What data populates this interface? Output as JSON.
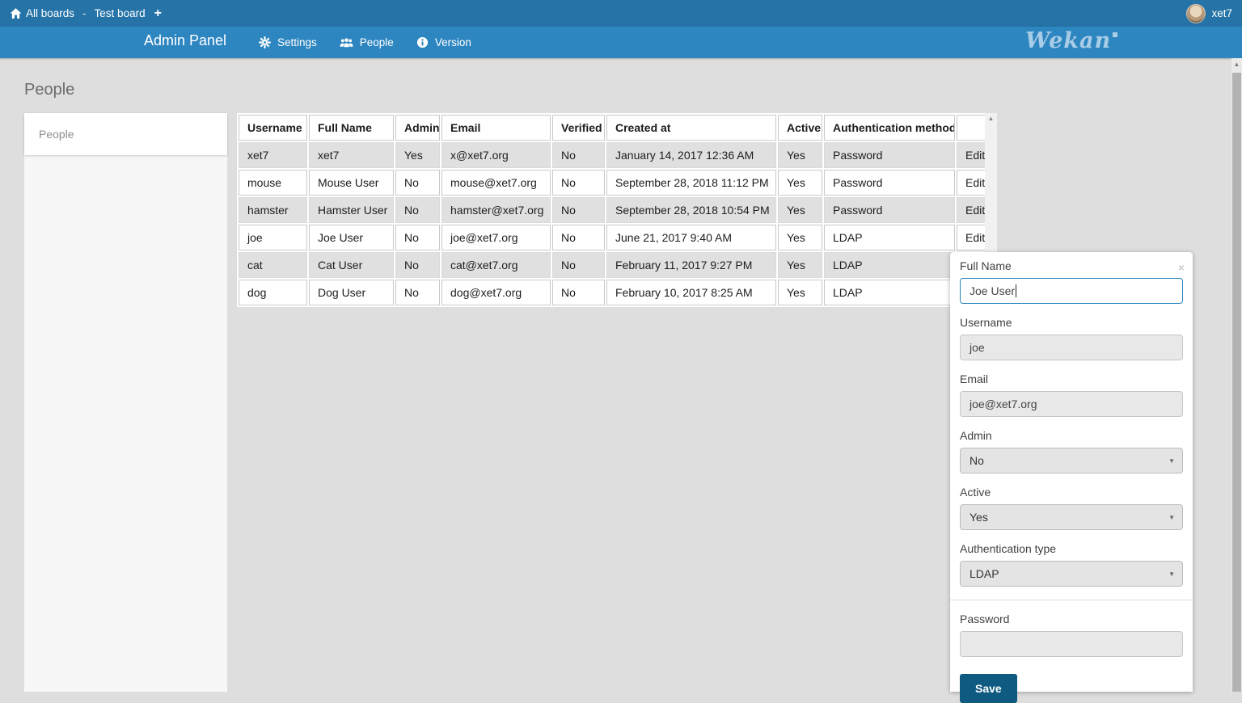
{
  "topbar": {
    "all_boards": "All boards",
    "separator": "-",
    "board_name": "Test board",
    "user_name": "xet7"
  },
  "header": {
    "title": "Admin Panel",
    "menu": [
      {
        "label": "Settings",
        "icon": "gear-icon"
      },
      {
        "label": "People",
        "icon": "people-icon"
      },
      {
        "label": "Version",
        "icon": "info-icon"
      }
    ],
    "logo_text": "Wekan"
  },
  "page": {
    "title": "People"
  },
  "sidebar": {
    "items": [
      {
        "label": "People",
        "active": true
      }
    ]
  },
  "table": {
    "headers": [
      "Username",
      "Full Name",
      "Admin",
      "Email",
      "Verified",
      "Created at",
      "Active",
      "Authentication method",
      ""
    ],
    "edit_label": "Edit",
    "rows": [
      {
        "cells": [
          "xet7",
          "xet7",
          "Yes",
          "x@xet7.org",
          "No",
          "January 14, 2017 12:36 AM",
          "Yes",
          "Password"
        ]
      },
      {
        "cells": [
          "mouse",
          "Mouse User",
          "No",
          "mouse@xet7.org",
          "No",
          "September 28, 2018 11:12 PM",
          "Yes",
          "Password"
        ]
      },
      {
        "cells": [
          "hamster",
          "Hamster User",
          "No",
          "hamster@xet7.org",
          "No",
          "September 28, 2018 10:54 PM",
          "Yes",
          "Password"
        ]
      },
      {
        "cells": [
          "joe",
          "Joe User",
          "No",
          "joe@xet7.org",
          "No",
          "June 21, 2017 9:40 AM",
          "Yes",
          "LDAP"
        ]
      },
      {
        "cells": [
          "cat",
          "Cat User",
          "No",
          "cat@xet7.org",
          "No",
          "February 11, 2017 9:27 PM",
          "Yes",
          "LDAP"
        ]
      },
      {
        "cells": [
          "dog",
          "Dog User",
          "No",
          "dog@xet7.org",
          "No",
          "February 10, 2017 8:25 AM",
          "Yes",
          "LDAP"
        ]
      }
    ]
  },
  "panel": {
    "full_name": {
      "label": "Full Name",
      "value": "Joe User"
    },
    "username": {
      "label": "Username",
      "value": "joe"
    },
    "email": {
      "label": "Email",
      "value": "joe@xet7.org"
    },
    "admin": {
      "label": "Admin",
      "value": "No"
    },
    "active": {
      "label": "Active",
      "value": "Yes"
    },
    "auth_type": {
      "label": "Authentication type",
      "value": "LDAP"
    },
    "password": {
      "label": "Password",
      "value": ""
    },
    "save_label": "Save"
  },
  "icons": {
    "plus": "+",
    "close": "×",
    "dropdown": "▼",
    "scroll_up": "▲"
  },
  "colors": {
    "topbar_bg": "#2573a7",
    "header_bg": "#2e86c1",
    "page_bg": "#dedede",
    "row_alt_bg": "#e0e0e0",
    "focus_border": "#2e86c1",
    "save_button_bg": "#0e5a80",
    "logo_color": "#a9cde6"
  }
}
